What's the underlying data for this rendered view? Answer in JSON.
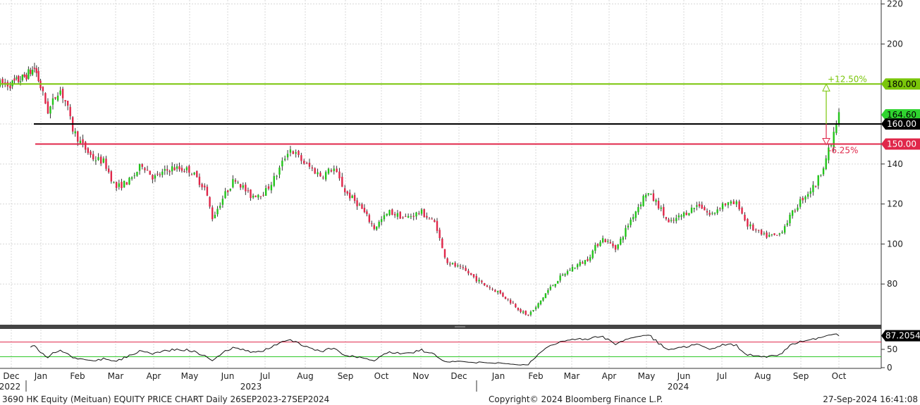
{
  "chart_data": {
    "type": "candlestick",
    "footer": {
      "left": "3690 HK Equity (Meituan) EQUITY PRICE CHART  Daily 26SEP2023-27SEP2024",
      "center": "Copyright© 2024 Bloomberg Finance L.P.",
      "right": "27-Sep-2024 16:41:08"
    },
    "x_months": [
      "Dec",
      "Jan",
      "Feb",
      "Mar",
      "Apr",
      "May",
      "Jun",
      "Jul",
      "Aug",
      "Sep",
      "Oct",
      "Nov",
      "Dec",
      "Jan",
      "Feb",
      "Mar",
      "Apr",
      "May",
      "Jun",
      "Jul",
      "Aug",
      "Sep",
      "Oct"
    ],
    "x_years": [
      "2022",
      "2023",
      "2024"
    ],
    "price_axis": {
      "ylim": [
        60,
        222
      ],
      "ticks": [
        80,
        100,
        120,
        140,
        160,
        180,
        200,
        220
      ]
    },
    "price_path": [
      {
        "m": 0.0,
        "p": 180
      },
      {
        "m": 0.4,
        "p": 183
      },
      {
        "m": 0.8,
        "p": 188
      },
      {
        "m": 1.0,
        "p": 178
      },
      {
        "m": 1.2,
        "p": 166
      },
      {
        "m": 1.5,
        "p": 178
      },
      {
        "m": 1.7,
        "p": 170
      },
      {
        "m": 1.85,
        "p": 158
      },
      {
        "m": 2.1,
        "p": 150
      },
      {
        "m": 2.4,
        "p": 143
      },
      {
        "m": 2.7,
        "p": 141
      },
      {
        "m": 3.0,
        "p": 128
      },
      {
        "m": 3.4,
        "p": 132
      },
      {
        "m": 3.7,
        "p": 140
      },
      {
        "m": 4.0,
        "p": 133
      },
      {
        "m": 4.5,
        "p": 138
      },
      {
        "m": 5.0,
        "p": 137
      },
      {
        "m": 5.4,
        "p": 128
      },
      {
        "m": 5.6,
        "p": 113
      },
      {
        "m": 5.9,
        "p": 124
      },
      {
        "m": 6.2,
        "p": 133
      },
      {
        "m": 6.6,
        "p": 124
      },
      {
        "m": 7.0,
        "p": 126
      },
      {
        "m": 7.3,
        "p": 135
      },
      {
        "m": 7.6,
        "p": 148
      },
      {
        "m": 8.0,
        "p": 140
      },
      {
        "m": 8.4,
        "p": 134
      },
      {
        "m": 8.7,
        "p": 138
      },
      {
        "m": 9.0,
        "p": 126
      },
      {
        "m": 9.4,
        "p": 119
      },
      {
        "m": 9.8,
        "p": 108
      },
      {
        "m": 10.2,
        "p": 116
      },
      {
        "m": 10.6,
        "p": 113
      },
      {
        "m": 11.0,
        "p": 116
      },
      {
        "m": 11.4,
        "p": 110
      },
      {
        "m": 11.55,
        "p": 98
      },
      {
        "m": 11.7,
        "p": 91
      },
      {
        "m": 12.2,
        "p": 86
      },
      {
        "m": 12.6,
        "p": 80
      },
      {
        "m": 13.0,
        "p": 76
      },
      {
        "m": 13.4,
        "p": 70
      },
      {
        "m": 13.75,
        "p": 64
      },
      {
        "m": 14.0,
        "p": 68
      },
      {
        "m": 14.3,
        "p": 76
      },
      {
        "m": 14.6,
        "p": 82
      },
      {
        "m": 15.0,
        "p": 88
      },
      {
        "m": 15.4,
        "p": 92
      },
      {
        "m": 15.8,
        "p": 103
      },
      {
        "m": 16.2,
        "p": 98
      },
      {
        "m": 16.6,
        "p": 113
      },
      {
        "m": 17.0,
        "p": 126
      },
      {
        "m": 17.3,
        "p": 120
      },
      {
        "m": 17.6,
        "p": 110
      },
      {
        "m": 18.0,
        "p": 115
      },
      {
        "m": 18.4,
        "p": 120
      },
      {
        "m": 18.7,
        "p": 114
      },
      {
        "m": 19.0,
        "p": 120
      },
      {
        "m": 19.4,
        "p": 120
      },
      {
        "m": 19.6,
        "p": 110
      },
      {
        "m": 20.0,
        "p": 104
      },
      {
        "m": 20.4,
        "p": 104
      },
      {
        "m": 20.6,
        "p": 110
      },
      {
        "m": 21.0,
        "p": 122
      },
      {
        "m": 21.4,
        "p": 130
      },
      {
        "m": 21.6,
        "p": 140
      },
      {
        "m": 21.8,
        "p": 150
      },
      {
        "m": 21.95,
        "p": 162
      },
      {
        "m": 22.0,
        "p": 164.6
      }
    ],
    "levels": [
      {
        "value": 180.0,
        "label": "180.00",
        "color": "#7ac60a",
        "pct": "+12.50%"
      },
      {
        "value": 164.6,
        "label": "164.60",
        "color": "#2fd42f",
        "pct": ""
      },
      {
        "value": 160.0,
        "label": "160.00",
        "color": "#000000",
        "pct": ""
      },
      {
        "value": 150.0,
        "label": "150.00",
        "color": "#e0274a",
        "pct": "-6.25%"
      }
    ],
    "rsi": {
      "last": 87.2054,
      "last_label": "87.2054",
      "ticks": [
        0,
        50
      ],
      "upper": 70,
      "lower": 30
    }
  }
}
